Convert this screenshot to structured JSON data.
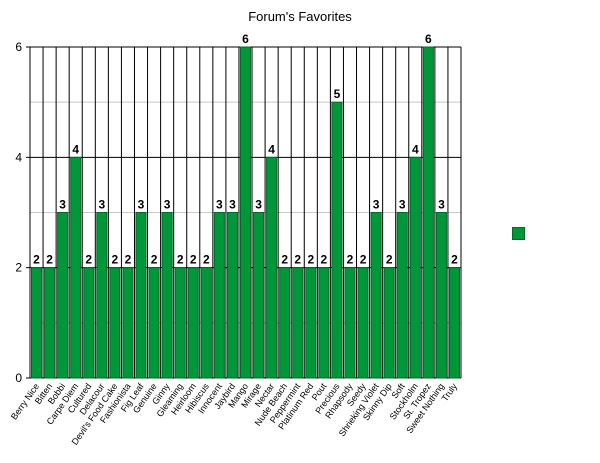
{
  "chart_data": {
    "type": "bar",
    "title": "Forum's Favorites",
    "xlabel": "",
    "ylabel": "",
    "ylim": [
      0,
      6
    ],
    "yticks": [
      0,
      2,
      4,
      6
    ],
    "grid": true,
    "legend_placement": "right",
    "bar_color": "#00963a",
    "bar_edge_color": "#006a28",
    "categories": [
      "Berry Nice",
      "Bitten",
      "Bobbi",
      "Carpe Diem",
      "Cultured",
      "Delacour",
      "Devil's Food Cake",
      "Fashionista",
      "Fig Leaf",
      "Genuine",
      "Ginny",
      "Gleaming",
      "Heirloom",
      "Hibiscus",
      "Innocent",
      "Jaybird",
      "Mango",
      "Mirage",
      "Nectar",
      "Nude Beach",
      "Peppermint",
      "Platinum Red",
      "Pout",
      "Precious",
      "Rhapsody",
      "Seedy",
      "Shrieking Violet",
      "Skinny Dip",
      "Soft",
      "Stockholm",
      "St. Tropez",
      "Sweet Nothing",
      "Truly"
    ],
    "series": [
      {
        "values": [
          2,
          2,
          3,
          4,
          2,
          3,
          2,
          2,
          3,
          2,
          3,
          2,
          2,
          2,
          3,
          3,
          6,
          3,
          4,
          2,
          2,
          2,
          2,
          5,
          2,
          2,
          3,
          2,
          3,
          4,
          6,
          3,
          2
        ]
      }
    ]
  }
}
